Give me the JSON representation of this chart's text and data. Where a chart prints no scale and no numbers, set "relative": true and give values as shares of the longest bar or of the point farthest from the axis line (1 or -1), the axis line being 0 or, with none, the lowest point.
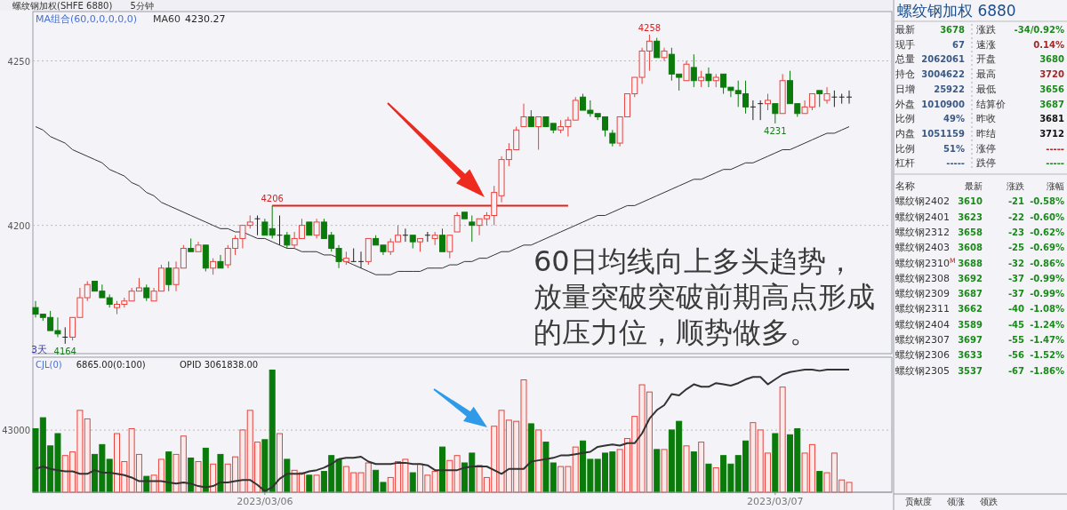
{
  "chart_data": [
    {
      "type": "candlestick",
      "title": "螺纹钢加权(SHFE 6880)",
      "ylim": [
        4161,
        4265
      ],
      "yticks": [
        4200,
        4250
      ],
      "grid": "y",
      "tick_labels": "y",
      "legend": "top left",
      "categories": [
        null,
        null,
        null,
        null,
        null,
        null,
        null,
        null,
        null,
        null,
        null,
        null,
        null,
        null,
        null,
        null,
        null,
        null,
        null,
        null,
        null,
        null,
        null,
        null,
        null,
        null,
        null,
        null,
        null,
        null,
        null,
        null,
        null,
        null,
        null,
        null,
        null,
        null,
        null,
        null,
        null,
        null,
        null,
        null,
        null,
        null,
        null,
        null,
        null,
        null,
        null,
        null,
        null,
        null,
        null,
        null,
        null,
        null,
        null,
        null,
        null,
        null,
        null,
        null,
        null,
        null,
        null,
        null,
        null,
        null,
        null,
        null,
        null,
        null,
        null,
        null,
        null,
        null,
        null,
        null,
        null,
        null,
        null,
        null,
        null,
        null,
        null,
        null,
        null,
        null,
        null,
        null,
        null,
        null,
        null,
        null,
        null,
        null,
        null,
        null,
        null,
        null,
        null,
        null,
        null,
        null,
        null,
        null,
        null,
        null,
        null
      ],
      "ohlc": [
        [
          4175,
          4177,
          4172,
          4173
        ],
        [
          4173,
          4173,
          4171,
          4172
        ],
        [
          4172,
          4174,
          4168,
          4168
        ],
        [
          4168,
          4172,
          4166,
          4167
        ],
        [
          4166,
          4169,
          4164,
          4166
        ],
        [
          4166,
          4172,
          4165,
          4172
        ],
        [
          4172,
          4181,
          4172,
          4178
        ],
        [
          4178,
          4183,
          4177,
          4182
        ],
        [
          4183,
          4183,
          4180,
          4180
        ],
        [
          4180,
          4182,
          4178,
          4178
        ],
        [
          4178,
          4179,
          4175,
          4176
        ],
        [
          4175,
          4177,
          4173,
          4176
        ],
        [
          4176,
          4178,
          4175,
          4177
        ],
        [
          4177,
          4181,
          4177,
          4180
        ],
        [
          4180,
          4184,
          4180,
          4181
        ],
        [
          4181,
          4182,
          4177,
          4178
        ],
        [
          4177,
          4181,
          4177,
          4180
        ],
        [
          4180,
          4188,
          4180,
          4187
        ],
        [
          4187,
          4189,
          4180,
          4182
        ],
        [
          4182,
          4189,
          4180,
          4187
        ],
        [
          4187,
          4194,
          4187,
          4193
        ],
        [
          4193,
          4196,
          4192,
          4192
        ],
        [
          4192,
          4195,
          4192,
          4194
        ],
        [
          4194,
          4194,
          4186,
          4187
        ],
        [
          4187,
          4190,
          4185,
          4189
        ],
        [
          4189,
          4191,
          4187,
          4187
        ],
        [
          4188,
          4194,
          4187,
          4193
        ],
        [
          4193,
          4197,
          4191,
          4196
        ],
        [
          4196,
          4200,
          4193,
          4200
        ],
        [
          4200,
          4203,
          4199,
          4201
        ],
        [
          4202,
          4203,
          4197,
          4202
        ],
        [
          4201,
          4202,
          4197,
          4197
        ],
        [
          4199,
          4206,
          4196,
          4197
        ],
        [
          4197,
          4203,
          4194,
          4197
        ],
        [
          4197,
          4198,
          4193,
          4194
        ],
        [
          4194,
          4198,
          4193,
          4196
        ],
        [
          4196,
          4202,
          4196,
          4200
        ],
        [
          4201,
          4201,
          4197,
          4197
        ],
        [
          4197,
          4202,
          4196,
          4201
        ],
        [
          4201,
          4202,
          4196,
          4196
        ],
        [
          4197,
          4198,
          4192,
          4193
        ],
        [
          4193,
          4194,
          4187,
          4189
        ],
        [
          4189,
          4192,
          4188,
          4190
        ],
        [
          4189,
          4193,
          4189,
          4189
        ],
        [
          4189,
          4192,
          4187,
          4189
        ],
        [
          4189,
          4196,
          4188,
          4196
        ],
        [
          4196,
          4197,
          4194,
          4194
        ],
        [
          4194,
          4194,
          4191,
          4192
        ],
        [
          4192,
          4196,
          4191,
          4195
        ],
        [
          4195,
          4200,
          4195,
          4197
        ],
        [
          4197,
          4199,
          4195,
          4197
        ],
        [
          4197,
          4197,
          4193,
          4195
        ],
        [
          4195,
          4196,
          4192,
          4196
        ],
        [
          4197,
          4198,
          4195,
          4197
        ],
        [
          4196,
          4198,
          4194,
          4197
        ],
        [
          4197,
          4199,
          4192,
          4192
        ],
        [
          4192,
          4197,
          4190,
          4197
        ],
        [
          4198,
          4204,
          4198,
          4203
        ],
        [
          4204,
          4204,
          4202,
          4202
        ],
        [
          4201,
          4203,
          4195,
          4200
        ],
        [
          4200,
          4202,
          4197,
          4202
        ],
        [
          4202,
          4204,
          4200,
          4203
        ],
        [
          4203,
          4212,
          4200,
          4210
        ],
        [
          4209,
          4221,
          4207,
          4220
        ],
        [
          4220,
          4225,
          4218,
          4223
        ],
        [
          4223,
          4230,
          4223,
          4229
        ],
        [
          4230,
          4237,
          4230,
          4233
        ],
        [
          4233,
          4235,
          4230,
          4230
        ],
        [
          4230,
          4233,
          4223,
          4233
        ],
        [
          4233,
          4233,
          4230,
          4230
        ],
        [
          4231,
          4231,
          4228,
          4229
        ],
        [
          4229,
          4232,
          4228,
          4230
        ],
        [
          4230,
          4233,
          4227,
          4232
        ],
        [
          4232,
          4239,
          4232,
          4238
        ],
        [
          4239,
          4240,
          4235,
          4235
        ],
        [
          4235,
          4238,
          4233,
          4234
        ],
        [
          4234,
          4234,
          4232,
          4233
        ],
        [
          4233,
          4233,
          4227,
          4229
        ],
        [
          4228,
          4229,
          4224,
          4225
        ],
        [
          4225,
          4233,
          4224,
          4233
        ],
        [
          4233,
          4240,
          4233,
          4240
        ],
        [
          4240,
          4245,
          4239,
          4245
        ],
        [
          4245,
          4254,
          4243,
          4253
        ],
        [
          4253,
          4258,
          4247,
          4256
        ],
        [
          4256,
          4257,
          4251,
          4251
        ],
        [
          4251,
          4254,
          4250,
          4253
        ],
        [
          4252,
          4254,
          4244,
          4246
        ],
        [
          4246,
          4246,
          4241,
          4245
        ],
        [
          4244,
          4250,
          4244,
          4249
        ],
        [
          4248,
          4252,
          4242,
          4244
        ],
        [
          4244,
          4247,
          4242,
          4245
        ],
        [
          4246,
          4248,
          4242,
          4244
        ],
        [
          4244,
          4246,
          4242,
          4245
        ],
        [
          4246,
          4246,
          4240,
          4242
        ],
        [
          4242,
          4242,
          4239,
          4241
        ],
        [
          4241,
          4244,
          4236,
          4240
        ],
        [
          4240,
          4244,
          4234,
          4236
        ],
        [
          4236,
          4238,
          4232,
          4236
        ],
        [
          4237,
          4238,
          4232,
          4237
        ],
        [
          4237,
          4240,
          4235,
          4238
        ],
        [
          4237,
          4237,
          4231,
          4234
        ],
        [
          4234,
          4246,
          4234,
          4244
        ],
        [
          4244,
          4247,
          4237,
          4237
        ],
        [
          4237,
          4237,
          4233,
          4234
        ],
        [
          4234,
          4238,
          4234,
          4236
        ],
        [
          4236,
          4240,
          4235,
          4240
        ],
        [
          4241,
          4241,
          4236,
          4240
        ],
        [
          4238,
          4242,
          4237,
          4240
        ],
        [
          4239,
          4241,
          4236,
          4239
        ],
        [
          4239,
          4240,
          4237,
          4239
        ],
        [
          4239,
          4241,
          4237,
          4239
        ]
      ],
      "series": [
        {
          "type": "line",
          "name": "MA60",
          "color": "#333333",
          "values": [
            4230,
            4229,
            4227,
            4226,
            4225,
            4223,
            4222,
            4221,
            4220,
            4219,
            4217,
            4216,
            4215,
            4213,
            4212,
            4210,
            4209,
            4207,
            4206,
            4205,
            4204,
            4203,
            4202,
            4201,
            4200,
            4199,
            4199,
            4198,
            4198,
            4197,
            4196,
            4196,
            4195,
            4194,
            4193,
            4193,
            4192,
            4192,
            4192,
            4191,
            4191,
            4190,
            4189,
            4188,
            4187,
            4186,
            4185,
            4185,
            4185,
            4186,
            4186,
            4186,
            4186,
            4187,
            4187,
            4187,
            4188,
            4188,
            4189,
            4189,
            4190,
            4190,
            4191,
            4192,
            4192,
            4193,
            4194,
            4194,
            4195,
            4196,
            4197,
            4198,
            4199,
            4200,
            4201,
            4202,
            4203,
            4203,
            4204,
            4205,
            4206,
            4206,
            4207,
            4208,
            4209,
            4210,
            4211,
            4212,
            4213,
            4214,
            4214,
            4215,
            4216,
            4217,
            4217,
            4218,
            4219,
            4219,
            4220,
            4221,
            4222,
            4223,
            4223,
            4224,
            4225,
            4226,
            4227,
            4228,
            4228,
            4229,
            4230
          ]
        },
        {
          "type": "line",
          "color": "#e0201b",
          "values": [
            null,
            null,
            null,
            null,
            null,
            null,
            null,
            null,
            null,
            null,
            null,
            null,
            null,
            null,
            null,
            null,
            null,
            null,
            null,
            null,
            null,
            null,
            null,
            null,
            null,
            null,
            null,
            null,
            null,
            null,
            null,
            null,
            4206,
            4206,
            4206,
            4206,
            4206,
            4206,
            4206,
            4206,
            4206,
            4206,
            4206,
            4206,
            4206,
            4206,
            4206,
            4206,
            4206,
            4206,
            4206,
            4206,
            4206,
            4206,
            4206,
            4206,
            4206,
            4206,
            4206,
            4206,
            4206,
            4206,
            4206,
            4206,
            4206,
            4206,
            4206,
            4206,
            4206,
            4206,
            4206,
            4206,
            4206,
            null,
            null,
            null,
            null,
            null,
            null,
            null,
            null,
            null,
            null,
            null,
            null,
            null,
            null,
            null,
            null,
            null,
            null,
            null,
            null,
            null,
            null,
            null,
            null,
            null,
            null,
            null,
            null,
            null,
            null,
            null,
            null,
            null,
            null,
            null,
            null,
            null,
            null
          ]
        }
      ],
      "annotations": [
        "5分钟",
        "MA组合(60,0,0,0,0,0)",
        "4230.27",
        "3天",
        "60日均线向上多头趋势，放量突破突破前期高点形成的压力位，顺势做多。",
        {
          "text": "4206",
          "y": 4206
        },
        {
          "text": "4258",
          "y": 4258
        },
        {
          "text": "4164",
          "y": 4164
        },
        {
          "text": "4231",
          "y": 4231
        }
      ]
    },
    {
      "type": "bar",
      "ylim": [
        0,
        93500
      ],
      "yticks": [
        43000
      ],
      "grid": "y",
      "categories": [
        null,
        null,
        null,
        null,
        null,
        null,
        null,
        null,
        null,
        null,
        null,
        null,
        null,
        null,
        null,
        null,
        null,
        null,
        null,
        null,
        null,
        null,
        null,
        null,
        null,
        null,
        null,
        null,
        null,
        null,
        null,
        "2023/03/06",
        null,
        null,
        null,
        null,
        null,
        null,
        null,
        null,
        null,
        null,
        null,
        null,
        null,
        null,
        null,
        null,
        null,
        null,
        null,
        null,
        null,
        null,
        null,
        null,
        null,
        null,
        null,
        null,
        null,
        null,
        null,
        null,
        null,
        null,
        null,
        null,
        null,
        null,
        null,
        null,
        null,
        null,
        null,
        null,
        null,
        null,
        null,
        null,
        null,
        null,
        null,
        null,
        null,
        null,
        null,
        null,
        null,
        null,
        null,
        null,
        null,
        null,
        null,
        null,
        null,
        null,
        null,
        null,
        "2023/03/07",
        null,
        null,
        null,
        null,
        null,
        null,
        null,
        null,
        null,
        null
      ],
      "series": [
        {
          "type": "bar",
          "colors": [
            "#0a7a0a",
            "#0a7a0a",
            "#0a7a0a",
            "#0a7a0a",
            "#e8413c",
            "#e8413c",
            "#e8413c",
            "#e8413c",
            "#0a7a0a",
            "#0a7a0a",
            "#0a7a0a",
            "#e8413c",
            "#e8413c",
            "#e8413c",
            "#e8413c",
            "#0a7a0a",
            "#e8413c",
            "#e8413c",
            "#0a7a0a",
            "#e8413c",
            "#e8413c",
            "#0a7a0a",
            "#e8413c",
            "#0a7a0a",
            "#e8413c",
            "#0a7a0a",
            "#e8413c",
            "#e8413c",
            "#e8413c",
            "#e8413c",
            "#e8413c",
            "#0a7a0a",
            "#0a7a0a",
            "#e8413c",
            "#0a7a0a",
            "#e8413c",
            "#e8413c",
            "#0a7a0a",
            "#e8413c",
            "#0a7a0a",
            "#0a7a0a",
            "#0a7a0a",
            "#e8413c",
            "#e8413c",
            "#e8413c",
            "#e8413c",
            "#0a7a0a",
            "#0a7a0a",
            "#e8413c",
            "#e8413c",
            "#e8413c",
            "#0a7a0a",
            "#e8413c",
            "#e8413c",
            "#e8413c",
            "#0a7a0a",
            "#e8413c",
            "#e8413c",
            "#0a7a0a",
            "#0a7a0a",
            "#e8413c",
            "#e8413c",
            "#e8413c",
            "#e8413c",
            "#e8413c",
            "#e8413c",
            "#e8413c",
            "#0a7a0a",
            "#e8413c",
            "#0a7a0a",
            "#0a7a0a",
            "#e8413c",
            "#e8413c",
            "#e8413c",
            "#0a7a0a",
            "#0a7a0a",
            "#0a7a0a",
            "#0a7a0a",
            "#0a7a0a",
            "#e8413c",
            "#e8413c",
            "#e8413c",
            "#e8413c",
            "#e8413c",
            "#0a7a0a",
            "#e8413c",
            "#0a7a0a",
            "#0a7a0a",
            "#e8413c",
            "#0a7a0a",
            "#e8413c",
            "#0a7a0a",
            "#e8413c",
            "#0a7a0a",
            "#0a7a0a",
            "#0a7a0a",
            "#0a7a0a",
            "#e8413c",
            "#e8413c",
            "#e8413c",
            "#0a7a0a",
            "#e8413c",
            "#0a7a0a",
            "#0a7a0a",
            "#e8413c",
            "#e8413c",
            "#0a7a0a",
            "#e8413c",
            "#e8413c",
            "#e8413c",
            "#e8413c"
          ],
          "values": [
            44000,
            51600,
            32100,
            40600,
            25400,
            27900,
            56700,
            50800,
            26200,
            33000,
            22800,
            40600,
            21200,
            44000,
            26200,
            11000,
            11800,
            22800,
            27900,
            26200,
            38900,
            23700,
            21200,
            30500,
            19500,
            26200,
            19500,
            24500,
            43100,
            56700,
            34700,
            36400,
            84600,
            40600,
            22800,
            15200,
            13500,
            11800,
            11800,
            14400,
            25400,
            22800,
            17800,
            13500,
            13500,
            20300,
            15200,
            6800,
            10200,
            21200,
            22800,
            13500,
            19500,
            11800,
            14400,
            31300,
            22000,
            25400,
            20300,
            27100,
            18600,
            10200,
            45700,
            56700,
            49900,
            49100,
            77800,
            47400,
            43100,
            34700,
            20300,
            17800,
            17800,
            31300,
            35500,
            22800,
            22800,
            27100,
            27900,
            29600,
            37200,
            52500,
            74400,
            69400,
            29600,
            29600,
            43100,
            49100,
            32100,
            27900,
            34700,
            19500,
            16900,
            25400,
            19500,
            25400,
            35500,
            48200,
            43100,
            27100,
            40600,
            72800,
            39800,
            44000,
            27100,
            33000,
            14400,
            13500,
            27100,
            8500,
            6800
          ]
        }
      ],
      "annotations": [
        "CJL(0)",
        "6865.00(0:100)"
      ]
    },
    {
      "type": "line",
      "relative": true,
      "tick_labels": false,
      "categories": [
        null,
        null,
        null,
        null,
        null,
        null,
        null,
        null,
        null,
        null,
        null,
        null,
        null,
        null,
        null,
        null,
        null,
        null,
        null,
        null,
        null,
        null,
        null,
        null,
        null,
        null,
        null,
        null,
        null,
        null,
        null,
        null,
        null,
        null,
        null,
        null,
        null,
        null,
        null,
        null,
        null,
        null,
        null,
        null,
        null,
        null,
        null,
        null,
        null,
        null,
        null,
        null,
        null,
        null,
        null,
        null,
        null,
        null,
        null,
        null,
        null,
        null,
        null,
        null,
        null,
        null,
        null,
        null,
        null,
        null,
        null,
        null,
        null,
        null,
        null,
        null,
        null,
        null,
        null,
        null,
        null,
        null,
        null,
        null,
        null,
        null,
        null,
        null,
        null,
        null,
        null,
        null,
        null,
        null,
        null,
        null,
        null,
        null,
        null,
        null,
        null,
        null,
        null,
        null,
        null,
        null,
        null,
        null,
        null,
        null,
        null
      ],
      "series": [
        {
          "color": "#333333",
          "values": [
            0.19,
            0.21,
            0.19,
            0.18,
            0.17,
            0.17,
            0.15,
            0.15,
            0.18,
            0.16,
            0.16,
            0.15,
            0.14,
            0.12,
            0.09,
            0.09,
            0.09,
            0.09,
            0.08,
            0.07,
            0.08,
            0.07,
            0.05,
            0.04,
            0.05,
            0.08,
            0.08,
            0.09,
            0.1,
            0.1,
            0.06,
            0.01,
            0.04,
            0.11,
            0.15,
            0.15,
            0.15,
            0.17,
            0.18,
            0.2,
            0.23,
            0.27,
            0.28,
            0.28,
            0.29,
            0.25,
            0.23,
            0.23,
            0.23,
            0.24,
            0.24,
            0.23,
            0.23,
            0.22,
            0.18,
            0.18,
            0.18,
            0.18,
            0.2,
            0.21,
            0.21,
            0.21,
            0.18,
            0.15,
            0.19,
            0.19,
            0.19,
            0.25,
            0.26,
            0.27,
            0.28,
            0.3,
            0.3,
            0.31,
            0.32,
            0.33,
            0.37,
            0.38,
            0.39,
            0.38,
            0.4,
            0.4,
            0.48,
            0.6,
            0.67,
            0.71,
            0.8,
            0.79,
            0.84,
            0.88,
            0.86,
            0.86,
            0.89,
            0.88,
            0.87,
            0.89,
            0.92,
            0.94,
            0.94,
            0.88,
            0.92,
            0.96,
            0.98,
            0.99,
            1,
            1,
            0.99,
            1,
            1,
            1,
            1
          ]
        }
      ],
      "annotations": [
        "OPID 3061838.00"
      ]
    },
    {
      "type": "other",
      "title": "螺纹钢加权  6880",
      "annotations": [
        "最新",
        "3678",
        "涨跌",
        "-34/0.92%",
        "现手",
        "67",
        "速涨",
        "0.14%",
        "总量",
        "2062061",
        "开盘",
        "3680",
        "持仓",
        "3004622",
        "最高",
        "3720",
        "日增",
        "25922",
        "最低",
        "3656",
        "外盘",
        "1010900",
        "结算价",
        "3687",
        "比例",
        "49%",
        "昨收",
        "3681",
        "内盘",
        "1051159",
        "昨结",
        "3712",
        "比例",
        "51%",
        "涨停",
        "-----",
        "杠杆",
        "-----",
        "跌停",
        "-----",
        "名称",
        "最新",
        "涨跌",
        "涨幅",
        "螺纹钢2402",
        "3610",
        "-21",
        "-0.58%",
        "螺纹钢2401",
        "3623",
        "-22",
        "-0.60%",
        "螺纹钢2312",
        "3658",
        "-23",
        "-0.62%",
        "螺纹钢2403",
        "3608",
        "-25",
        "-0.69%",
        "螺纹钢2310$^{M}$",
        "3688",
        "-32",
        "-0.86%",
        "螺纹钢2308",
        "3692",
        "-37",
        "-0.99%",
        "螺纹钢2309",
        "3687",
        "-37",
        "-0.99%",
        "螺纹钢2311",
        "3662",
        "-40",
        "-1.08%",
        "螺纹钢2404",
        "3589",
        "-45",
        "-1.24%",
        "螺纹钢2307",
        "3697",
        "-55",
        "-1.47%",
        "螺纹钢2306",
        "3633",
        "-56",
        "-1.52%",
        "螺纹钢2305",
        "3537",
        "-67",
        "-1.86%",
        "贡献度",
        "领涨",
        "领跌"
      ]
    }
  ]
}
